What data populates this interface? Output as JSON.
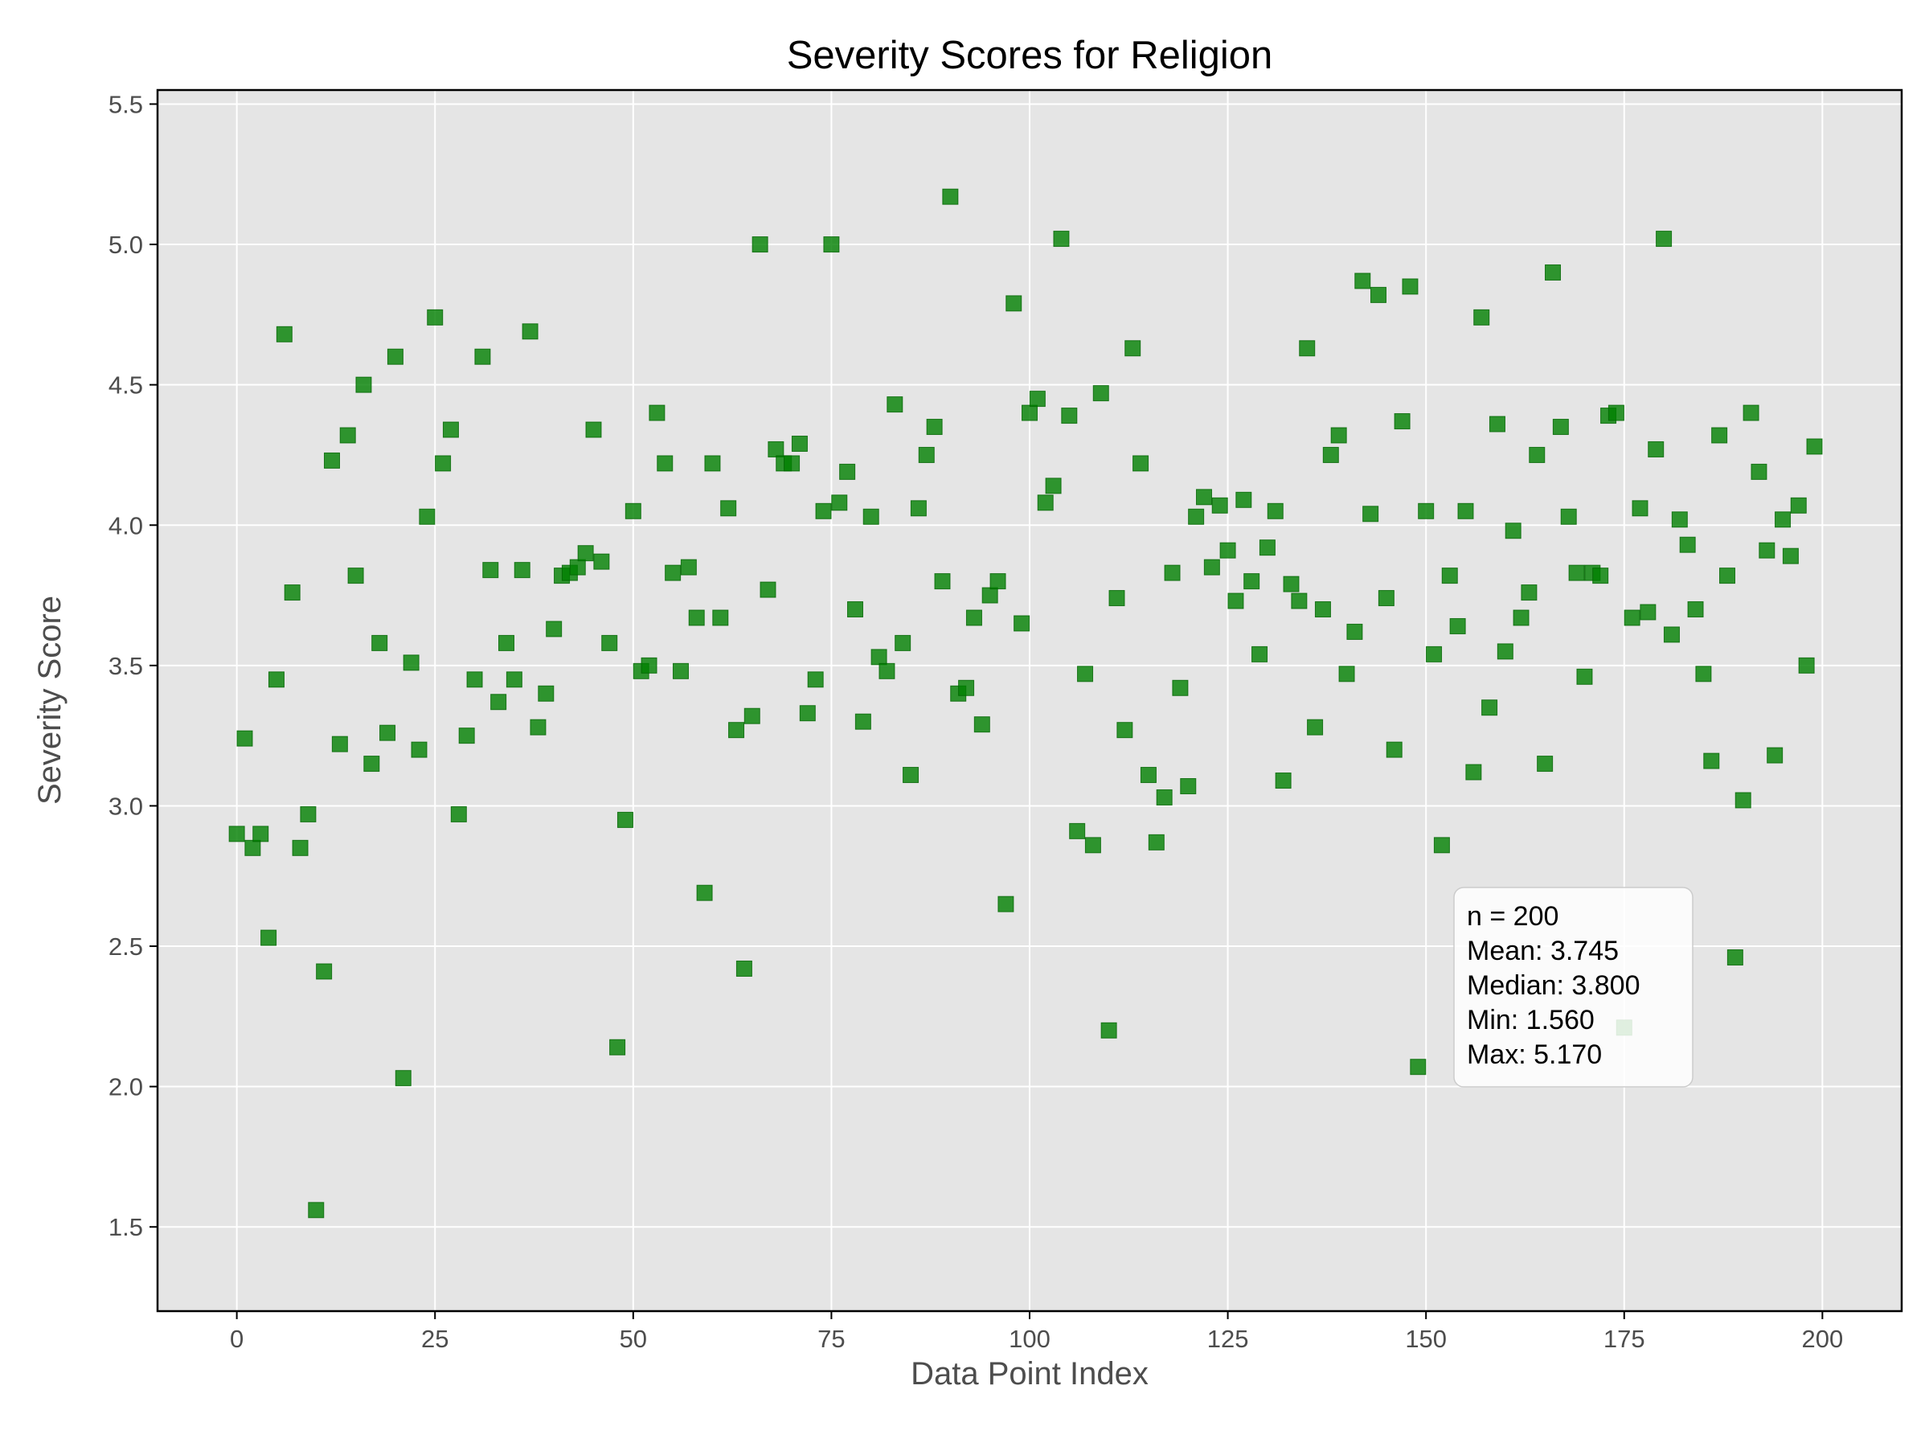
{
  "chart_data": {
    "type": "scatter",
    "title": "Severity Scores for Religion",
    "xlabel": "Data Point Index",
    "ylabel": "Severity Score",
    "xlim": [
      -10,
      210
    ],
    "ylim": [
      1.2,
      5.55
    ],
    "xticks": [
      0,
      25,
      50,
      75,
      100,
      125,
      150,
      175,
      200
    ],
    "yticks": [
      1.5,
      2.0,
      2.5,
      3.0,
      3.5,
      4.0,
      4.5,
      5.0,
      5.5
    ],
    "xtick_labels": [
      "0",
      "25",
      "50",
      "75",
      "100",
      "125",
      "150",
      "175",
      "200"
    ],
    "ytick_labels": [
      "1.5",
      "2.0",
      "2.5",
      "3.0",
      "3.5",
      "4.0",
      "4.5",
      "5.0",
      "5.5"
    ],
    "grid": true,
    "marker": "square",
    "colors": {
      "marker": "#008000",
      "plot_background": "#e5e5e5",
      "grid": "#ffffff"
    },
    "x": [
      0,
      1,
      2,
      3,
      4,
      5,
      6,
      7,
      8,
      9,
      10,
      11,
      12,
      13,
      14,
      15,
      16,
      17,
      18,
      19,
      20,
      21,
      22,
      23,
      24,
      25,
      26,
      27,
      28,
      29,
      30,
      31,
      32,
      33,
      34,
      35,
      36,
      37,
      38,
      39,
      40,
      41,
      42,
      43,
      44,
      45,
      46,
      47,
      48,
      49,
      50,
      51,
      52,
      53,
      54,
      55,
      56,
      57,
      58,
      59,
      60,
      61,
      62,
      63,
      64,
      65,
      66,
      67,
      68,
      69,
      70,
      71,
      72,
      73,
      74,
      75,
      76,
      77,
      78,
      79,
      80,
      81,
      82,
      83,
      84,
      85,
      86,
      87,
      88,
      89,
      90,
      91,
      92,
      93,
      94,
      95,
      96,
      97,
      98,
      99,
      100,
      101,
      102,
      103,
      104,
      105,
      106,
      107,
      108,
      109,
      110,
      111,
      112,
      113,
      114,
      115,
      116,
      117,
      118,
      119,
      120,
      121,
      122,
      123,
      124,
      125,
      126,
      127,
      128,
      129,
      130,
      131,
      132,
      133,
      134,
      135,
      136,
      137,
      138,
      139,
      140,
      141,
      142,
      143,
      144,
      145,
      146,
      147,
      148,
      149,
      150,
      151,
      152,
      153,
      154,
      155,
      156,
      157,
      158,
      159,
      160,
      161,
      162,
      163,
      164,
      165,
      166,
      167,
      168,
      169,
      170,
      171,
      172,
      173,
      174,
      175,
      176,
      177,
      178,
      179,
      180,
      181,
      182,
      183,
      184,
      185,
      186,
      187,
      188,
      189,
      190,
      191,
      192,
      193,
      194,
      195,
      196,
      197,
      198,
      199
    ],
    "y": [
      2.9,
      3.24,
      2.85,
      2.9,
      2.53,
      3.45,
      4.68,
      3.76,
      2.85,
      2.97,
      1.56,
      2.41,
      4.23,
      3.22,
      4.32,
      3.82,
      4.5,
      3.15,
      3.58,
      3.26,
      4.6,
      2.03,
      3.51,
      3.2,
      4.03,
      4.74,
      4.22,
      4.34,
      2.97,
      3.25,
      3.45,
      4.6,
      3.84,
      3.37,
      3.58,
      3.45,
      3.84,
      4.69,
      3.28,
      3.4,
      3.63,
      3.82,
      3.83,
      3.85,
      3.9,
      4.34,
      3.87,
      3.58,
      2.14,
      2.95,
      4.05,
      3.48,
      3.5,
      4.4,
      4.22,
      3.83,
      3.48,
      3.85,
      3.67,
      2.69,
      4.22,
      3.67,
      4.06,
      3.27,
      2.42,
      3.32,
      5.0,
      3.77,
      4.27,
      4.22,
      4.22,
      4.29,
      3.33,
      3.45,
      4.05,
      5.0,
      4.08,
      4.19,
      3.7,
      3.3,
      4.03,
      3.53,
      3.48,
      4.43,
      3.58,
      3.11,
      4.06,
      4.25,
      4.35,
      3.8,
      5.17,
      3.4,
      3.42,
      3.67,
      3.29,
      3.75,
      3.8,
      2.65,
      4.79,
      3.65,
      4.4,
      4.45,
      4.08,
      4.14,
      5.02,
      4.39,
      2.91,
      3.47,
      2.86,
      4.47,
      2.2,
      3.74,
      3.27,
      4.63,
      4.22,
      3.11,
      2.87,
      3.03,
      3.83,
      3.42,
      3.07,
      4.03,
      4.1,
      3.85,
      4.07,
      3.91,
      3.73,
      4.09,
      3.8,
      3.54,
      3.92,
      4.05,
      3.09,
      3.79,
      3.73,
      4.63,
      3.28,
      3.7,
      4.25,
      4.32,
      3.47,
      3.62,
      4.87,
      4.04,
      4.82,
      3.74,
      3.2,
      4.37,
      4.85,
      2.07,
      4.05,
      3.54,
      2.86,
      3.82,
      3.64,
      4.05,
      3.12,
      4.74,
      3.35,
      4.36,
      3.55,
      3.98,
      3.67,
      3.76,
      4.25,
      3.15,
      4.9,
      4.35,
      4.03,
      3.83,
      3.46,
      3.83,
      3.82,
      4.39,
      4.4,
      2.21,
      3.67,
      4.06,
      3.69,
      4.27,
      5.02,
      3.61,
      4.02,
      3.93,
      3.7,
      3.47,
      3.16,
      4.32,
      3.82,
      2.46,
      3.02,
      4.4,
      4.19,
      3.91,
      3.18,
      4.02,
      3.89,
      4.07,
      3.5,
      4.28
    ],
    "stats_box": {
      "lines": [
        "n = 200",
        "Mean: 3.745",
        "Median: 3.800",
        "Min: 1.560",
        "Max: 5.170"
      ]
    }
  }
}
